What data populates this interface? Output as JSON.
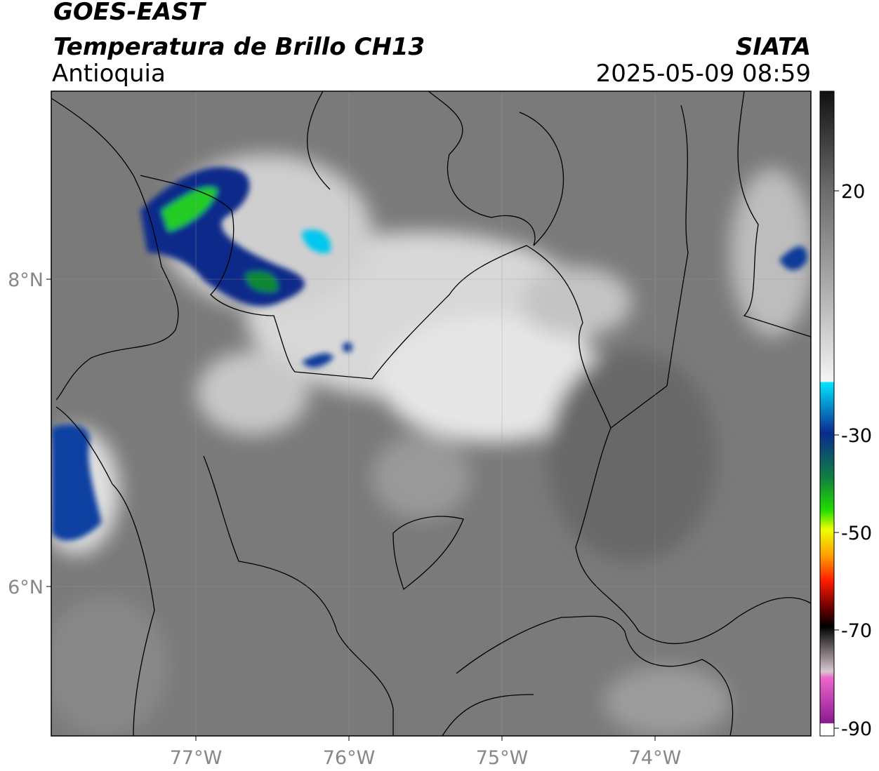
{
  "header": {
    "title": "GOES-EAST",
    "subtitle": "Temperatura de Brillo CH13",
    "region": "Antioquia",
    "source": "SIATA",
    "datetime": "2025-05-09 08:59"
  },
  "map": {
    "lat_labels": [
      "8°N",
      "6°N"
    ],
    "lon_labels": [
      "77°W",
      "76°W",
      "75°W",
      "74°W"
    ]
  },
  "colorbar": {
    "labels": [
      "20",
      "-30",
      "-50",
      "-70",
      "-90"
    ]
  }
}
